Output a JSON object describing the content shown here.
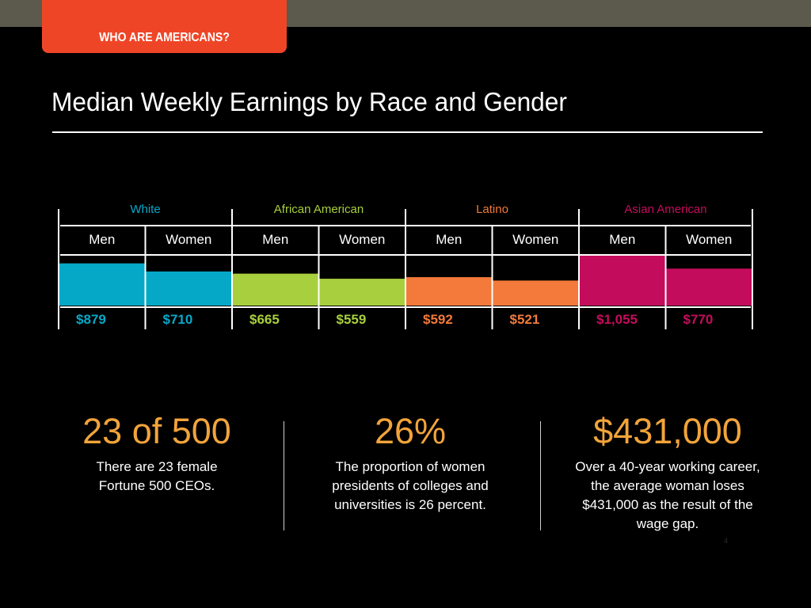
{
  "header": {
    "section_label": "WHO ARE AMERICANS?",
    "title": "Median Weekly Earnings by Race and Gender"
  },
  "colors": {
    "accent_tab": "#ef4527",
    "top_bar": "#5b5a4c",
    "stat_value": "#f2a43a"
  },
  "chart_data": {
    "type": "bar",
    "title": "Median Weekly Earnings by Race and Gender",
    "groups": [
      {
        "name": "White",
        "color": "#06a8c8"
      },
      {
        "name": "African American",
        "color": "#a8cf3d"
      },
      {
        "name": "Latino",
        "color": "#f37a3a"
      },
      {
        "name": "Asian American",
        "color": "#c40c5c"
      }
    ],
    "categories": [
      "Men",
      "Women",
      "Men",
      "Women",
      "Men",
      "Women",
      "Men",
      "Women"
    ],
    "values": [
      879,
      710,
      665,
      559,
      592,
      521,
      1055,
      770
    ],
    "value_labels": [
      "$879",
      "$710",
      "$665",
      "$559",
      "$592",
      "$521",
      "$1,055",
      "$770"
    ],
    "ylim": [
      0,
      1055
    ],
    "grid": false,
    "legend": "none"
  },
  "stats": [
    {
      "value": "23 of 500",
      "description": "There are 23 female Fortune 500 CEOs."
    },
    {
      "value": "26%",
      "description": "The proportion of women presidents of colleges and universities is 26 percent."
    },
    {
      "value": "$431,000",
      "description": "Over a 40-year working career, the average woman loses $431,000 as the result of the wage gap."
    }
  ],
  "page_number": "4"
}
